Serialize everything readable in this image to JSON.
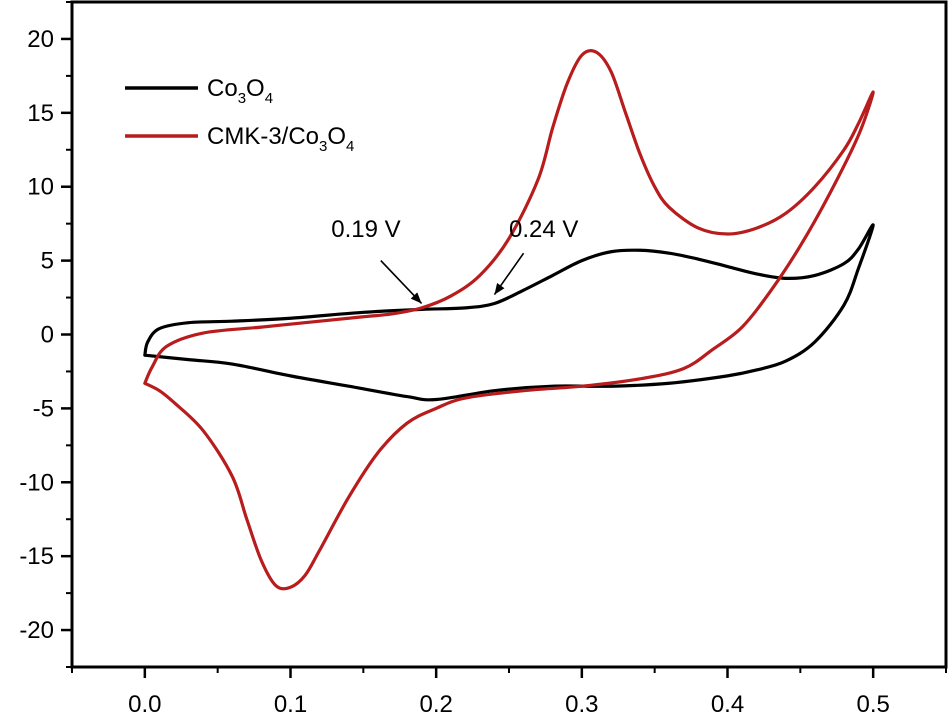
{
  "chart_data": {
    "type": "line",
    "title": "",
    "xlabel": "",
    "ylabel": "",
    "xlim": [
      -0.05,
      0.55
    ],
    "ylim": [
      -22.5,
      22.5
    ],
    "x_ticks": [
      0.0,
      0.1,
      0.2,
      0.3,
      0.4,
      0.5
    ],
    "x_tick_labels": [
      "0.0",
      "0.1",
      "0.2",
      "0.3",
      "0.4",
      "0.5"
    ],
    "y_ticks": [
      -20,
      -15,
      -10,
      -5,
      0,
      5,
      10,
      15,
      20
    ],
    "y_tick_labels": [
      "-20",
      "-15",
      "-10",
      "-5",
      "0",
      "5",
      "10",
      "15",
      "20"
    ],
    "grid": false,
    "legend_position": "top-left",
    "series": [
      {
        "name": "Co3O4",
        "legend_main": "Co",
        "legend_sub1": "3",
        "legend_mid": "O",
        "legend_sub2": "4",
        "color": "#000000",
        "points": [
          [
            0.0,
            -1.4
          ],
          [
            0.002,
            -0.5
          ],
          [
            0.01,
            0.4
          ],
          [
            0.03,
            0.8
          ],
          [
            0.06,
            0.9
          ],
          [
            0.1,
            1.1
          ],
          [
            0.15,
            1.5
          ],
          [
            0.19,
            1.7
          ],
          [
            0.22,
            1.8
          ],
          [
            0.24,
            2.1
          ],
          [
            0.26,
            3.0
          ],
          [
            0.28,
            4.0
          ],
          [
            0.3,
            5.0
          ],
          [
            0.32,
            5.6
          ],
          [
            0.34,
            5.7
          ],
          [
            0.36,
            5.5
          ],
          [
            0.38,
            5.1
          ],
          [
            0.4,
            4.6
          ],
          [
            0.42,
            4.1
          ],
          [
            0.44,
            3.8
          ],
          [
            0.46,
            4.0
          ],
          [
            0.48,
            4.8
          ],
          [
            0.49,
            5.8
          ],
          [
            0.5,
            7.4
          ],
          [
            0.49,
            4.5
          ],
          [
            0.48,
            2.0
          ],
          [
            0.46,
            -0.5
          ],
          [
            0.44,
            -1.8
          ],
          [
            0.42,
            -2.4
          ],
          [
            0.4,
            -2.8
          ],
          [
            0.36,
            -3.3
          ],
          [
            0.32,
            -3.5
          ],
          [
            0.28,
            -3.5
          ],
          [
            0.24,
            -3.8
          ],
          [
            0.2,
            -4.4
          ],
          [
            0.18,
            -4.2
          ],
          [
            0.14,
            -3.5
          ],
          [
            0.1,
            -2.8
          ],
          [
            0.06,
            -2.0
          ],
          [
            0.03,
            -1.7
          ],
          [
            0.0,
            -1.4
          ]
        ]
      },
      {
        "name": "CMK-3/Co3O4",
        "legend_main": "CMK-3/Co",
        "legend_sub1": "3",
        "legend_mid": "O",
        "legend_sub2": "4",
        "color": "#b81c1c",
        "points": [
          [
            0.0,
            -3.3
          ],
          [
            0.005,
            -2.2
          ],
          [
            0.015,
            -0.8
          ],
          [
            0.04,
            0.1
          ],
          [
            0.08,
            0.5
          ],
          [
            0.12,
            0.9
          ],
          [
            0.15,
            1.2
          ],
          [
            0.17,
            1.4
          ],
          [
            0.19,
            1.8
          ],
          [
            0.21,
            2.6
          ],
          [
            0.23,
            4.0
          ],
          [
            0.25,
            6.5
          ],
          [
            0.27,
            10.5
          ],
          [
            0.28,
            14.0
          ],
          [
            0.29,
            17.0
          ],
          [
            0.3,
            18.9
          ],
          [
            0.31,
            19.1
          ],
          [
            0.32,
            17.8
          ],
          [
            0.33,
            15.0
          ],
          [
            0.34,
            12.2
          ],
          [
            0.35,
            10.0
          ],
          [
            0.36,
            8.6
          ],
          [
            0.38,
            7.2
          ],
          [
            0.4,
            6.8
          ],
          [
            0.42,
            7.2
          ],
          [
            0.44,
            8.2
          ],
          [
            0.46,
            10.0
          ],
          [
            0.48,
            12.5
          ],
          [
            0.49,
            14.3
          ],
          [
            0.5,
            16.4
          ],
          [
            0.49,
            13.5
          ],
          [
            0.47,
            9.5
          ],
          [
            0.45,
            6.0
          ],
          [
            0.43,
            3.0
          ],
          [
            0.41,
            0.5
          ],
          [
            0.39,
            -1.0
          ],
          [
            0.37,
            -2.3
          ],
          [
            0.34,
            -3.0
          ],
          [
            0.3,
            -3.5
          ],
          [
            0.26,
            -3.8
          ],
          [
            0.22,
            -4.3
          ],
          [
            0.2,
            -5.0
          ],
          [
            0.18,
            -6.0
          ],
          [
            0.16,
            -8.0
          ],
          [
            0.14,
            -11.0
          ],
          [
            0.12,
            -14.6
          ],
          [
            0.11,
            -16.3
          ],
          [
            0.1,
            -17.1
          ],
          [
            0.09,
            -17.0
          ],
          [
            0.08,
            -15.3
          ],
          [
            0.07,
            -12.5
          ],
          [
            0.06,
            -9.6
          ],
          [
            0.04,
            -6.5
          ],
          [
            0.02,
            -4.6
          ],
          [
            0.01,
            -3.8
          ],
          [
            0.0,
            -3.3
          ]
        ]
      }
    ],
    "annotations": [
      {
        "text": "0.19 V",
        "label_x": 0.128,
        "label_y": 6.6,
        "arrow_from": [
          0.162,
          5.0
        ],
        "arrow_to": [
          0.19,
          2.1
        ]
      },
      {
        "text": "0.24 V",
        "label_x": 0.25,
        "label_y": 6.6,
        "arrow_from": [
          0.26,
          5.5
        ],
        "arrow_to": [
          0.24,
          2.7
        ]
      }
    ]
  }
}
